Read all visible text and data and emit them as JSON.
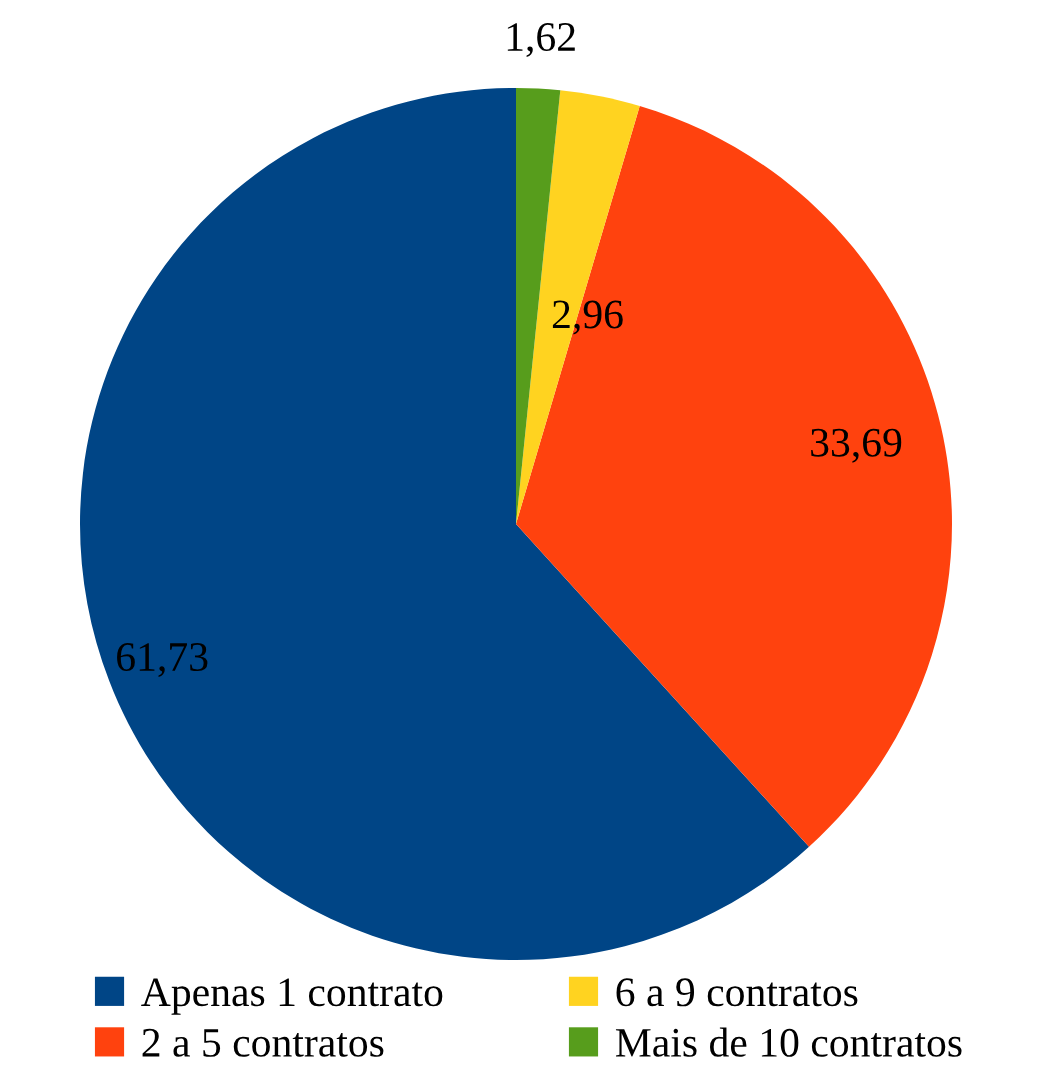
{
  "chart_data": {
    "type": "pie",
    "categories": [
      "Apenas 1 contrato",
      "2 a 5 contratos",
      "6 a 9 contratos",
      "Mais de 10 contratos"
    ],
    "values": [
      61.73,
      33.69,
      2.96,
      1.62
    ],
    "colors": [
      "#004586",
      "#ff420e",
      "#ffd320",
      "#579d1c"
    ],
    "value_labels": [
      "61,73",
      "33,69",
      "2,96",
      "1,62"
    ],
    "legend": "bottom"
  }
}
